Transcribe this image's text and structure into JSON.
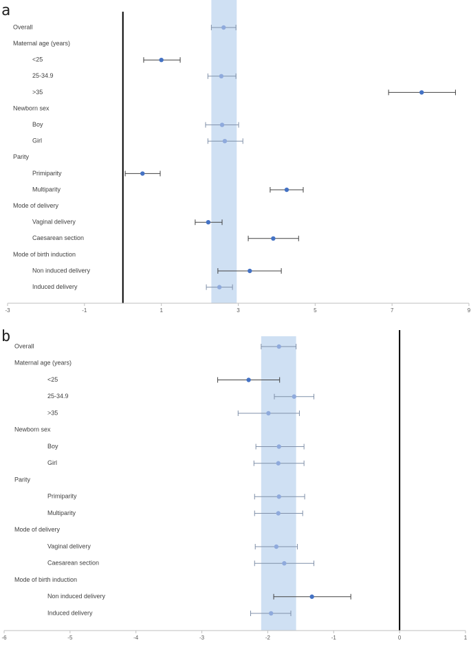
{
  "chart_data": [
    {
      "type": "forest",
      "panel_label": "a",
      "categories": [
        "Overall",
        "Maternal age (years)",
        "<25",
        "25-34.9",
        ">35",
        "Newborn sex",
        "Boy",
        "Girl",
        "Parity",
        "Primiparity",
        "Multiparity",
        "Mode of delivery",
        "Vaginal delivery",
        "Caesarean section",
        "Mode of birth induction",
        "Non induced delivery",
        "Induced delivery"
      ],
      "values": [
        2.62,
        null,
        1.0,
        2.56,
        7.77,
        null,
        2.58,
        2.65,
        null,
        0.51,
        4.26,
        null,
        2.22,
        3.91,
        null,
        3.3,
        2.51
      ],
      "ci_lower": [
        2.3,
        null,
        0.54,
        2.21,
        6.91,
        null,
        2.15,
        2.21,
        null,
        0.06,
        3.83,
        null,
        1.88,
        3.26,
        null,
        2.47,
        2.17
      ],
      "ci_upper": [
        2.94,
        null,
        1.49,
        2.94,
        8.65,
        null,
        3.01,
        3.12,
        null,
        0.97,
        4.69,
        null,
        2.58,
        4.57,
        null,
        4.12,
        2.85
      ],
      "colors": [
        "#8faadc",
        null,
        "#4472c4",
        "#8faadc",
        "#4472c4",
        null,
        "#8faadc",
        "#8faadc",
        null,
        "#4472c4",
        "#4472c4",
        null,
        "#4472c4",
        "#4472c4",
        null,
        "#4472c4",
        "#8faadc"
      ],
      "xlim": [
        -3,
        9
      ],
      "xticks": [
        -3,
        -1,
        1,
        3,
        5,
        7,
        9
      ],
      "reference_line": 0,
      "band": [
        2.3,
        2.96
      ],
      "band_color": "#cfe0f3"
    },
    {
      "type": "forest",
      "panel_label": "b",
      "categories": [
        "Overall",
        "Maternal age (years)",
        "<25",
        "25-34.9",
        ">35",
        "Newborn sex",
        "Boy",
        "Girl",
        "Parity",
        "Primiparity",
        "Multiparity",
        "Mode of delivery",
        "Vaginal delivery",
        "Caesarean section",
        "Mode of birth induction",
        "Non induced delivery",
        "Induced delivery"
      ],
      "values": [
        -1.83,
        null,
        -2.29,
        -1.6,
        -1.99,
        null,
        -1.83,
        -1.84,
        null,
        -1.83,
        -1.84,
        null,
        -1.87,
        -1.75,
        null,
        -1.33,
        -1.95
      ],
      "ci_lower": [
        -2.1,
        null,
        -2.76,
        -1.9,
        -2.45,
        null,
        -2.18,
        -2.21,
        null,
        -2.2,
        -2.2,
        null,
        -2.19,
        -2.2,
        null,
        -1.91,
        -2.26
      ],
      "ci_upper": [
        -1.57,
        null,
        -1.82,
        -1.3,
        -1.52,
        null,
        -1.45,
        -1.45,
        null,
        -1.44,
        -1.47,
        null,
        -1.55,
        -1.3,
        null,
        -0.74,
        -1.65
      ],
      "colors": [
        "#8faadc",
        null,
        "#4472c4",
        "#8faadc",
        "#8faadc",
        null,
        "#8faadc",
        "#8faadc",
        null,
        "#8faadc",
        "#8faadc",
        null,
        "#8faadc",
        "#8faadc",
        null,
        "#4472c4",
        "#8faadc"
      ],
      "xlim": [
        -6,
        1
      ],
      "xticks": [
        -6,
        -5,
        -4,
        -3,
        -2,
        -1,
        0,
        1
      ],
      "reference_line": 0,
      "band": [
        -2.1,
        -1.57
      ],
      "band_color": "#cfe0f3"
    }
  ]
}
